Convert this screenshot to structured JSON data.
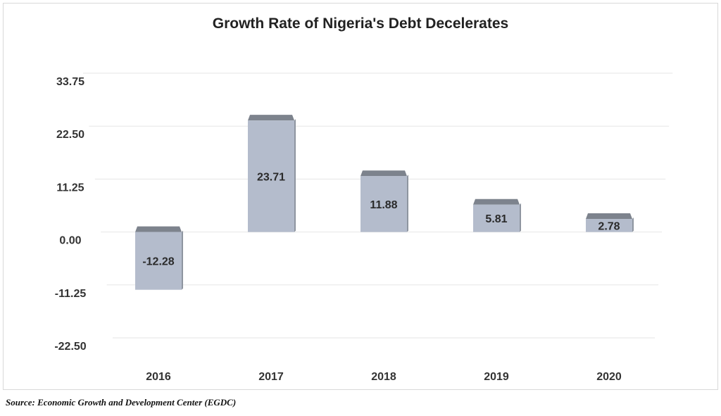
{
  "chart_data": {
    "type": "bar",
    "title": "Growth Rate of Nigeria's Debt Decelerates",
    "categories": [
      "2016",
      "2017",
      "2018",
      "2019",
      "2020"
    ],
    "values": [
      -12.28,
      23.71,
      11.88,
      5.81,
      2.78
    ],
    "data_labels": [
      "-12.28",
      "23.71",
      "11.88",
      "5.81",
      "2.78"
    ],
    "y_ticks": [
      "33.75",
      "22.50",
      "11.25",
      "0.00",
      "-11.25",
      "-22.50"
    ],
    "y_tick_values": [
      33.75,
      22.5,
      11.25,
      0,
      -11.25,
      -22.5
    ],
    "ylim": [
      -22.5,
      33.75
    ],
    "xlabel": "",
    "ylabel": "",
    "grid": true,
    "legend": "none",
    "bar_color": "#b4bccc",
    "bar_top_color": "#7d838d",
    "bar_side_color": "#8e95a0"
  },
  "source": "Source: Economic Growth and Development Center (EGDC)"
}
